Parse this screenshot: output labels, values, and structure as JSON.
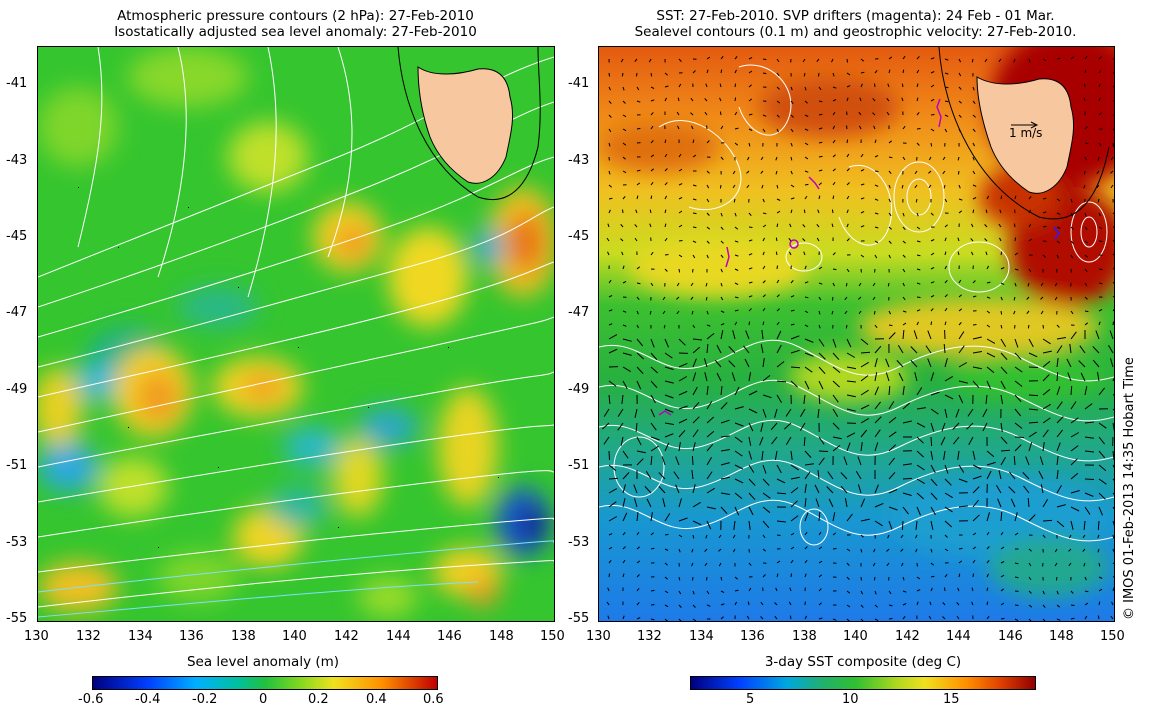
{
  "left": {
    "title_line1": "Atmospheric pressure contours (2 hPa): 27-Feb-2010",
    "title_line2": "Isostatically adjusted sea level anomaly: 27-Feb-2010",
    "colorbar_label": "Sea level anomaly (m)",
    "colorbar_ticks": [
      "-0.6",
      "-0.4",
      "-0.2",
      "0",
      "0.2",
      "0.4",
      "0.6"
    ]
  },
  "right": {
    "title_line1": "SST: 27-Feb-2010. SVP drifters (magenta): 24 Feb - 01 Mar.",
    "title_line2": "Sealevel contours (0.1 m) and geostrophic velocity: 27-Feb-2010.",
    "colorbar_label": "3-day SST composite (deg C)",
    "colorbar_ticks": [
      "5",
      "10",
      "15"
    ],
    "velocity_key": "1 m/s"
  },
  "lat_ticks": [
    "-41",
    "-43",
    "-45",
    "-47",
    "-49",
    "-51",
    "-53",
    "-55"
  ],
  "lon_ticks": [
    "130",
    "132",
    "134",
    "136",
    "138",
    "140",
    "142",
    "144",
    "146",
    "148",
    "150"
  ],
  "credit": "© IMOS 01-Feb-2013 14:35 Hobart Time",
  "colors": {
    "land": "#f7c7a0",
    "sla_mid": "#2fc42f",
    "sst_warm": "#a00000",
    "sst_cold": "#1e6be8"
  }
}
